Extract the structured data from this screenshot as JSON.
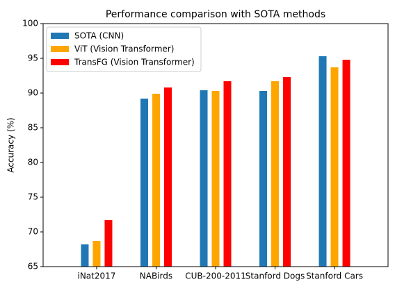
{
  "chart_data": {
    "type": "bar",
    "title": "Performance comparison with SOTA methods",
    "y_label": "Accuracy (%)",
    "categories": [
      "iNat2017",
      "NABirds",
      "CUB-200-2011",
      "Stanford Dogs",
      "Stanford Cars"
    ],
    "series": [
      {
        "name": "SOTA (CNN)",
        "color": "#1f77b4",
        "values": [
          68.2,
          89.2,
          90.4,
          90.3,
          95.3
        ]
      },
      {
        "name": "ViT (Vision Transformer)",
        "color": "#ffa500",
        "values": [
          68.7,
          89.9,
          90.3,
          91.7,
          93.7
        ]
      },
      {
        "name": "TransFG (Vision Transformer)",
        "color": "#ff0000",
        "values": [
          71.7,
          90.8,
          91.7,
          92.3,
          94.8
        ]
      }
    ],
    "ylim": [
      65,
      100
    ],
    "yticks": [
      65,
      70,
      75,
      80,
      85,
      90,
      95,
      100
    ],
    "legend": "upper left"
  }
}
